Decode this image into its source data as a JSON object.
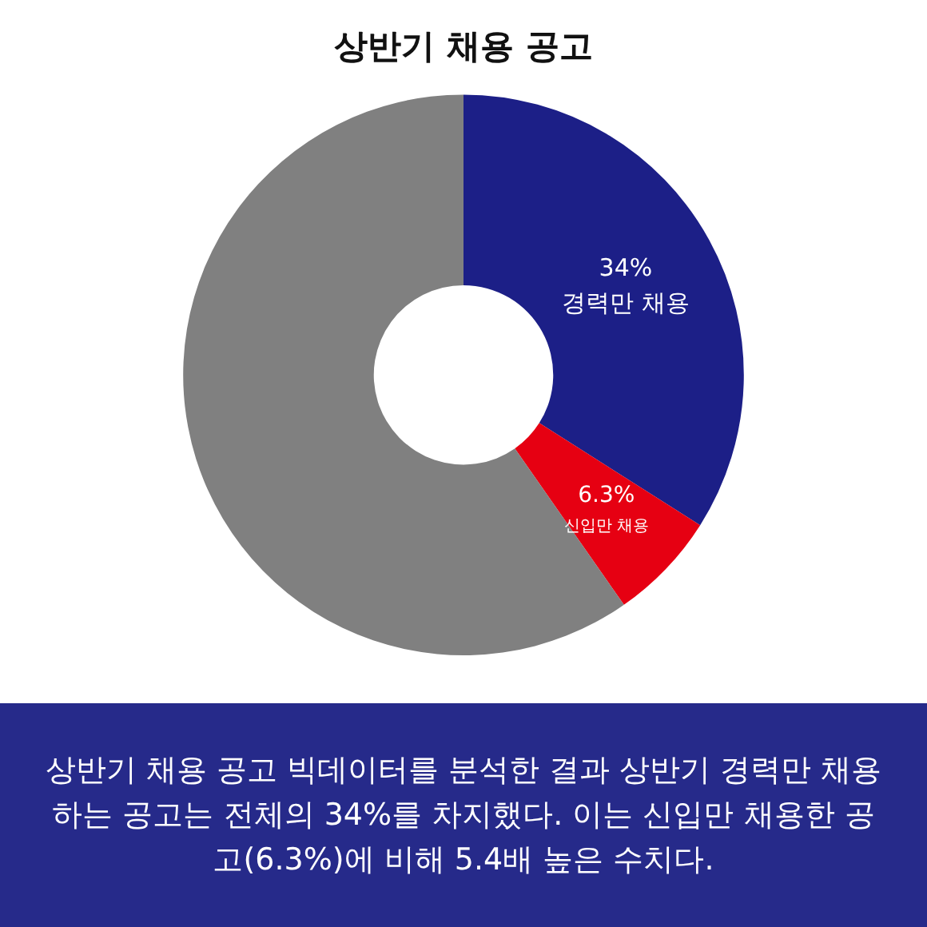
{
  "chart_data": {
    "type": "donut",
    "title": "상반기 채용 공고",
    "categories": [
      "경력만 채용",
      "신입만 채용",
      null
    ],
    "values": [
      34,
      6.3,
      59.7
    ],
    "colors": [
      "#1c1f87",
      "#e60012",
      "#808080"
    ],
    "value_labels": [
      "34%",
      "6.3%",
      null
    ],
    "legend": false,
    "annotations": [
      "상반기 채용 공고 빅데이터를 분석한 결과 상반기 경력만 채용하는 공고는 전체의 34%를 차지했다. 이는 신입만 채용한 공고(6.3%)에 비해 5.4배 높은 수치다."
    ]
  }
}
